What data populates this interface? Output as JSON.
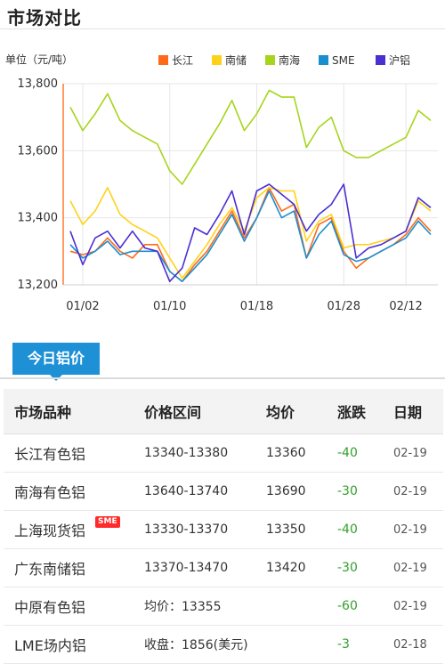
{
  "header": {
    "title": "市场对比"
  },
  "chart_data": {
    "type": "line",
    "ylabel": "单位（元/吨）",
    "ylim": [
      13200,
      13800
    ],
    "yticks": [
      "13,200",
      "13,400",
      "13,600",
      "13,800"
    ],
    "xticks": [
      "01/02",
      "01/10",
      "01/18",
      "01/28",
      "02/12"
    ],
    "grid": true,
    "legend_position": "top",
    "series": [
      {
        "name": "长江",
        "color": "#ff6a1a",
        "values": [
          13300,
          13290,
          13300,
          13340,
          13300,
          13280,
          13320,
          13320,
          13240,
          13210,
          13260,
          13300,
          13360,
          13420,
          13340,
          13400,
          13490,
          13420,
          13440,
          13280,
          13380,
          13400,
          13300,
          13250,
          13280,
          13300,
          13320,
          13350,
          13400,
          13360
        ]
      },
      {
        "name": "南储",
        "color": "#ffd21a",
        "values": [
          13450,
          13380,
          13420,
          13490,
          13410,
          13380,
          13360,
          13340,
          13280,
          13220,
          13270,
          13320,
          13380,
          13430,
          13360,
          13460,
          13490,
          13480,
          13480,
          13330,
          13390,
          13410,
          13310,
          13320,
          13320,
          13330,
          13340,
          13360,
          13450,
          13420
        ]
      },
      {
        "name": "南海",
        "color": "#a6d51c",
        "values": [
          13730,
          13660,
          13710,
          13770,
          13690,
          13660,
          13640,
          13620,
          13540,
          13500,
          13560,
          13620,
          13680,
          13750,
          13660,
          13710,
          13780,
          13760,
          13760,
          13610,
          13670,
          13700,
          13600,
          13580,
          13580,
          13600,
          13620,
          13640,
          13720,
          13690
        ]
      },
      {
        "name": "SME",
        "color": "#1a8fd0",
        "values": [
          13320,
          13280,
          13300,
          13330,
          13290,
          13300,
          13300,
          13300,
          13240,
          13210,
          13250,
          13290,
          13350,
          13410,
          13330,
          13400,
          13480,
          13400,
          13420,
          13280,
          13350,
          13390,
          13290,
          13270,
          13280,
          13300,
          13320,
          13340,
          13390,
          13350
        ]
      },
      {
        "name": "沪铝",
        "color": "#4b2fd1",
        "values": [
          13360,
          13260,
          13340,
          13360,
          13310,
          13360,
          13310,
          13300,
          13210,
          13250,
          13370,
          13350,
          13410,
          13480,
          13350,
          13480,
          13500,
          13470,
          13440,
          13360,
          13410,
          13440,
          13500,
          13280,
          13310,
          13320,
          13340,
          13360,
          13460,
          13430
        ]
      }
    ]
  },
  "tab": {
    "label": "今日铝价"
  },
  "table": {
    "headers": [
      "市场品种",
      "价格区间",
      "均价",
      "涨跌",
      "日期"
    ],
    "rows": [
      {
        "name": "长江有色铝",
        "range": "13340-13380",
        "avg": "13360",
        "change": "-40",
        "date": "02-19"
      },
      {
        "name": "南海有色铝",
        "range": "13640-13740",
        "avg": "13690",
        "change": "-30",
        "date": "02-19"
      },
      {
        "name": "上海现货铝",
        "range": "13330-13370",
        "avg": "13350",
        "change": "-40",
        "date": "02-19",
        "badge": "SME"
      },
      {
        "name": "广东南储铝",
        "range": "13370-13470",
        "avg": "13420",
        "change": "-30",
        "date": "02-19"
      },
      {
        "name": "中原有色铝",
        "range": "均价：13355",
        "avg": "",
        "change": "-60",
        "date": "02-19"
      },
      {
        "name": "LME场内铝",
        "range": "收盘：1856(美元)",
        "avg": "",
        "change": "-3",
        "date": "02-18"
      }
    ]
  }
}
